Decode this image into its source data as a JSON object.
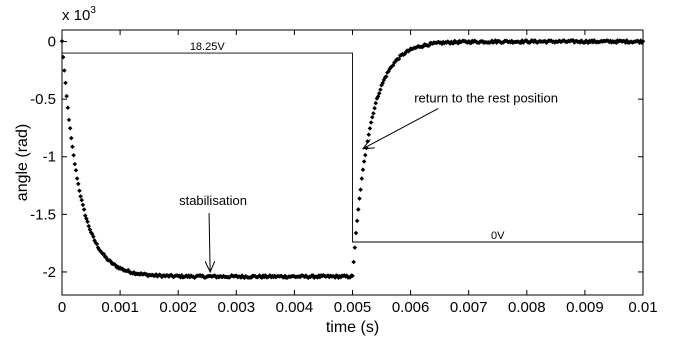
{
  "chart_data": {
    "type": "scatter",
    "title": "",
    "xlabel": "time (s)",
    "ylabel": "angle (rad)",
    "y_multiplier_label": "x 10",
    "y_multiplier_exponent": "3",
    "xlim": [
      0,
      0.01
    ],
    "ylim": [
      -2.2,
      0.1
    ],
    "x_ticks": [
      0,
      0.001,
      0.002,
      0.003,
      0.004,
      0.005,
      0.006,
      0.007,
      0.008,
      0.009,
      0.01
    ],
    "x_tick_labels": [
      "0",
      "0.001",
      "0.002",
      "0.003",
      "0.004",
      "0.005",
      "0.006",
      "0.007",
      "0.008",
      "0.009",
      "0.01"
    ],
    "y_ticks": [
      0,
      -0.5,
      -1,
      -1.5,
      -2
    ],
    "y_tick_labels": [
      "0",
      "-0.5",
      "-1",
      "-1.5",
      "-2"
    ],
    "grid": false,
    "response": {
      "t_switch": 0.005,
      "plateau": -2.04,
      "rest": 0,
      "time_constant_fall": 0.0003,
      "time_constant_rise": 0.0003,
      "sample_step": 2e-05
    },
    "voltage_signal": {
      "high_label": "18.25V",
      "low_label": "0V",
      "high_level": -0.1,
      "low_level": -1.74,
      "t_switch": 0.005
    },
    "annotations": [
      {
        "text": "stabilisation",
        "text_at": [
          0.0026,
          -1.42
        ],
        "arrow_to": [
          0.00255,
          -2.0
        ]
      },
      {
        "text": "return to the rest position",
        "text_at": [
          0.0073,
          -0.53
        ],
        "arrow_to": [
          0.00518,
          -0.93
        ]
      }
    ]
  }
}
